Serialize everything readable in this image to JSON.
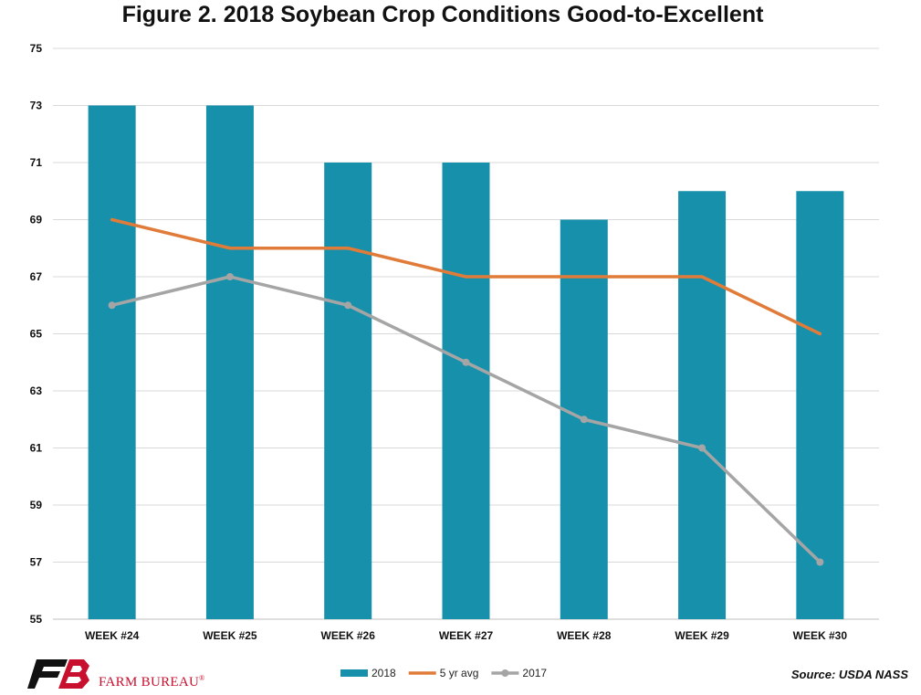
{
  "chart_data": {
    "type": "bar",
    "title": "Figure 2. 2018 Soybean Crop Conditions Good-to-Excellent",
    "xlabel": "",
    "ylabel": "",
    "categories": [
      "WEEK #24",
      "WEEK #25",
      "WEEK #26",
      "WEEK #27",
      "WEEK #28",
      "WEEK #29",
      "WEEK #30"
    ],
    "ylim": [
      55,
      75
    ],
    "yticks": [
      55,
      57,
      59,
      61,
      63,
      65,
      67,
      69,
      71,
      73,
      75
    ],
    "grid": true,
    "legend_position": "bottom",
    "series": [
      {
        "name": "2018",
        "type": "bar",
        "color": "#1791ab",
        "values": [
          73,
          73,
          71,
          71,
          69,
          70,
          70
        ]
      },
      {
        "name": "5 yr avg",
        "type": "line",
        "color": "#e07b39",
        "markers": false,
        "values": [
          69,
          68,
          68,
          67,
          67,
          67,
          65
        ]
      },
      {
        "name": "2017",
        "type": "line",
        "color": "#a5a5a5",
        "markers": true,
        "values": [
          66,
          67,
          66,
          64,
          62,
          61,
          57
        ]
      }
    ]
  },
  "footer": {
    "logo_text": "FARM BUREAU",
    "logo_mark": "®",
    "source": "Source: USDA NASS"
  }
}
